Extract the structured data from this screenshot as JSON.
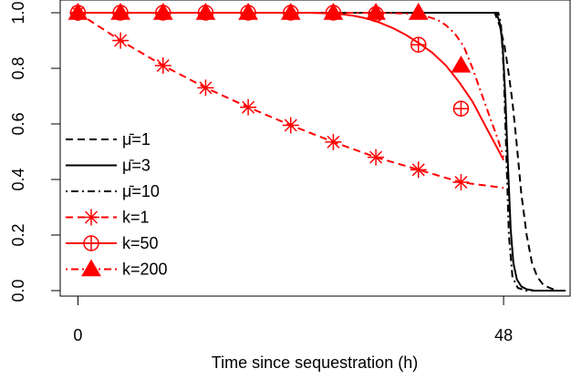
{
  "chart_data": {
    "type": "line",
    "title": "",
    "xlabel": "Time since sequestration (h)",
    "ylabel": "",
    "xlim": [
      -2,
      55.5
    ],
    "ylim": [
      0,
      1
    ],
    "x_ticks": [
      0,
      48
    ],
    "y_ticks": [
      0.0,
      0.2,
      0.4,
      0.6,
      0.8,
      1.0
    ],
    "y_tick_labels": [
      "0.0",
      "0.2",
      "0.4",
      "0.6",
      "0.8",
      "1.0"
    ],
    "grid": false,
    "legend_position": "left",
    "series": [
      {
        "name": "μ̄=1",
        "legend_label": "μ̄=1",
        "color": "#000000",
        "line_style": "dashed",
        "marker": "none",
        "x": [
          0,
          47.0,
          47.6,
          48.1,
          48.5,
          49.0,
          49.5,
          50.0,
          50.6,
          51.2,
          51.8,
          52.5,
          53.2,
          54.0,
          55.0
        ],
        "y": [
          1.0,
          1.0,
          0.95,
          0.88,
          0.8,
          0.68,
          0.52,
          0.35,
          0.2,
          0.1,
          0.05,
          0.02,
          0.01,
          0.0,
          0.0
        ]
      },
      {
        "name": "μ̄=3",
        "legend_label": "μ̄=3",
        "color": "#000000",
        "line_style": "solid",
        "marker": "none",
        "x": [
          0,
          47.2,
          47.6,
          47.9,
          48.2,
          48.5,
          48.8,
          49.1,
          49.5,
          50.0,
          50.6,
          51.5,
          53.0,
          55.0
        ],
        "y": [
          1.0,
          1.0,
          0.96,
          0.88,
          0.7,
          0.45,
          0.22,
          0.1,
          0.04,
          0.015,
          0.005,
          0.0,
          0.0,
          0.0
        ]
      },
      {
        "name": "μ̄=10",
        "legend_label": "μ̄=10",
        "color": "#000000",
        "line_style": "dotdash",
        "marker": "none",
        "x": [
          0,
          47.4,
          47.7,
          48.0,
          48.3,
          48.6,
          49.0,
          49.6,
          50.5,
          52.0,
          55.0
        ],
        "y": [
          1.0,
          1.0,
          0.96,
          0.8,
          0.5,
          0.2,
          0.05,
          0.01,
          0.0,
          0.0,
          0.0
        ]
      },
      {
        "name": "k=1",
        "legend_label": "k=1",
        "color": "#ff0000",
        "line_style": "dashed",
        "marker": "asterisk",
        "x": [
          0,
          4.8,
          9.6,
          14.4,
          19.2,
          24.0,
          28.8,
          33.6,
          38.4,
          43.2,
          48.0
        ],
        "y": [
          1.0,
          0.9,
          0.81,
          0.73,
          0.66,
          0.595,
          0.535,
          0.48,
          0.435,
          0.39,
          0.37
        ],
        "marker_x": [
          0,
          4.8,
          9.6,
          14.4,
          19.2,
          24.0,
          28.8,
          33.6,
          38.4,
          43.2
        ],
        "marker_y": [
          1.0,
          0.9,
          0.81,
          0.73,
          0.66,
          0.595,
          0.535,
          0.48,
          0.435,
          0.39
        ]
      },
      {
        "name": "k=50",
        "legend_label": "k=50",
        "color": "#ff0000",
        "line_style": "solid",
        "marker": "circle-plus",
        "x": [
          0,
          20,
          26,
          29,
          31,
          32.5,
          34,
          35.5,
          37,
          38.5,
          40,
          41.5,
          43,
          44.5,
          46,
          47,
          48
        ],
        "y": [
          1.0,
          1.0,
          1.0,
          0.997,
          0.99,
          0.98,
          0.965,
          0.945,
          0.92,
          0.89,
          0.855,
          0.81,
          0.75,
          0.68,
          0.59,
          0.53,
          0.47
        ],
        "marker_x": [
          0,
          4.8,
          9.6,
          14.4,
          19.2,
          24.0,
          28.8,
          33.6,
          38.4,
          43.2
        ],
        "marker_y": [
          1.0,
          1.0,
          1.0,
          1.0,
          1.0,
          1.0,
          1.0,
          0.995,
          0.885,
          0.655
        ]
      },
      {
        "name": "k=200",
        "legend_label": "k=200",
        "color": "#ff0000",
        "line_style": "dotdash",
        "marker": "triangle",
        "x": [
          0,
          34,
          37,
          39,
          40.5,
          41.5,
          42.5,
          43.5,
          44.5,
          45.5,
          46.5,
          47.3,
          48
        ],
        "y": [
          1.0,
          1.0,
          0.997,
          0.99,
          0.975,
          0.955,
          0.925,
          0.88,
          0.8,
          0.71,
          0.62,
          0.55,
          0.48
        ],
        "marker_x": [
          0,
          4.8,
          9.6,
          14.4,
          19.2,
          24.0,
          28.8,
          33.6,
          38.4,
          43.2
        ],
        "marker_y": [
          1.0,
          1.0,
          1.0,
          1.0,
          1.0,
          1.0,
          1.0,
          1.0,
          1.0,
          0.81
        ]
      }
    ]
  }
}
